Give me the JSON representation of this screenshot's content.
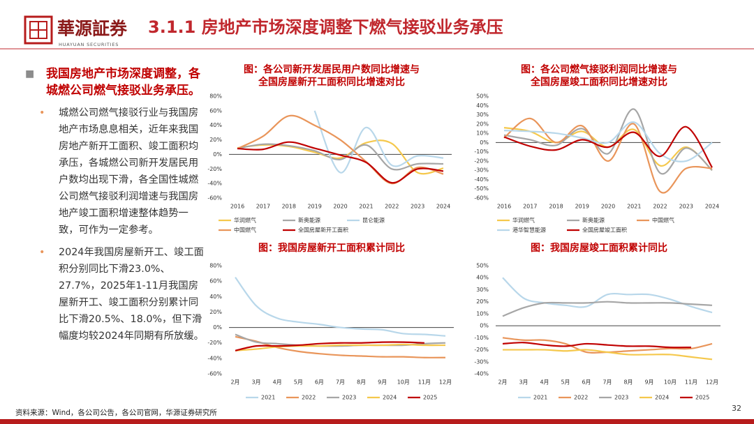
{
  "header": {
    "logo_text": "華源証券",
    "logo_subtext": "HUAYUAN SECURITIES",
    "title": "3.1.1 房地产市场深度调整下燃气接驳业务承压"
  },
  "summary": {
    "heading": "我国房地产市场深度调整，各城燃公司燃气接驳业务承压。",
    "points": [
      "城燃公司燃气接驳行业与我国房地产市场息息相关，近年来我国房地产新开工面积、竣工面积均承压，各城燃公司新开发居民用户数均出现下滑，各全国性城燃公司燃气接驳利润增速与我国房地产竣工面积增速整体趋势一致，可作为一定参考。",
      "2024年我国房屋新开工、竣工面积分别同比下滑23.0%、27.7%，2025年1-11月我国房屋新开工、竣工面积分别累计同比下滑20.5%、18.0%，但下滑幅度均较2024年同期有所放缓。"
    ]
  },
  "source": "资料来源：Wind，各公司公告，各公司官网，华源证券研究所",
  "page_number": "32",
  "chart_data": [
    {
      "type": "line",
      "title": [
        "图：各公司新开发居民用户数同比增速与",
        "全国房屋新开工面积同比增速对比"
      ],
      "categories": [
        "2016",
        "2017",
        "2018",
        "2019",
        "2020",
        "2021",
        "2022",
        "2023",
        "2024"
      ],
      "ylim": [
        -60,
        80
      ],
      "yticks": [
        {
          "value": -60,
          "label": "-60%"
        },
        {
          "value": -40,
          "label": "-40%"
        },
        {
          "value": -20,
          "label": "-20%"
        },
        {
          "value": 0,
          "label": "0%"
        },
        {
          "value": 20,
          "label": "20%"
        },
        {
          "value": 40,
          "label": "40%"
        },
        {
          "value": 60,
          "label": "60%"
        },
        {
          "value": 80,
          "label": "80%"
        }
      ],
      "series": [
        {
          "name": "华润燃气",
          "color": "#f5c84c",
          "values": [
            9,
            13,
            11,
            3,
            -5,
            16,
            15,
            -25,
            -19
          ]
        },
        {
          "name": "新奥能源",
          "color": "#a6a6a6",
          "values": [
            8,
            14,
            12,
            5,
            -7,
            13,
            -20,
            -13,
            -13
          ]
        },
        {
          "name": "昆仑能源",
          "color": "#b8d7ea",
          "values": [
            null,
            null,
            null,
            60,
            -25,
            37,
            -15,
            -2,
            -5
          ]
        },
        {
          "name": "中国燃气",
          "color": "#e9955a",
          "values": [
            8,
            25,
            53,
            40,
            20,
            -10,
            -40,
            -18,
            -27
          ]
        },
        {
          "name": "全国房屋新开工面积",
          "color": "#c00000",
          "values": [
            8,
            7,
            17,
            8.5,
            -1,
            -11,
            -39,
            -20,
            -23
          ]
        }
      ]
    },
    {
      "type": "line",
      "title": [
        "图：各公司燃气接驳利润同比增速与",
        "全国房屋竣工面积同比增速对比"
      ],
      "categories": [
        "2016",
        "2017",
        "2018",
        "2019",
        "2020",
        "2021",
        "2022",
        "2023",
        "2024"
      ],
      "ylim": [
        -60,
        50
      ],
      "yticks": [
        {
          "value": -60,
          "label": "-60%"
        },
        {
          "value": -50,
          "label": "-50%"
        },
        {
          "value": -40,
          "label": "-40%"
        },
        {
          "value": -30,
          "label": "-30%"
        },
        {
          "value": -20,
          "label": "-20%"
        },
        {
          "value": -10,
          "label": "-10%"
        },
        {
          "value": 0,
          "label": "0%"
        },
        {
          "value": 10,
          "label": "10%"
        },
        {
          "value": 20,
          "label": "20%"
        },
        {
          "value": 30,
          "label": "30%"
        },
        {
          "value": 40,
          "label": "40%"
        },
        {
          "value": 50,
          "label": "50%"
        }
      ],
      "series": [
        {
          "name": "华润燃气",
          "color": "#f5c84c",
          "values": [
            16,
            12,
            0,
            12,
            -5,
            14,
            -25,
            -5,
            -30
          ]
        },
        {
          "name": "新奥能源",
          "color": "#a6a6a6",
          "values": [
            8,
            3,
            -3,
            15,
            -12,
            36,
            -33,
            -6,
            -30
          ]
        },
        {
          "name": "中国燃气",
          "color": "#e9955a",
          "values": [
            5,
            26,
            0,
            18,
            -20,
            20,
            -53,
            -28,
            -28
          ]
        },
        {
          "name": "港华智慧能源",
          "color": "#b8d7ea",
          "values": [
            13,
            12,
            10,
            5,
            0,
            22,
            -12,
            -20,
            0
          ]
        },
        {
          "name": "全国房屋竣工面积",
          "color": "#c00000",
          "values": [
            6,
            -4,
            -8,
            3,
            -5,
            11,
            -15,
            17,
            -27
          ]
        }
      ]
    },
    {
      "type": "line",
      "title": "图：我国房屋新开工面积累计同比",
      "categories": [
        "2月",
        "3月",
        "4月",
        "5月",
        "6月",
        "7月",
        "8月",
        "9月",
        "10月",
        "11月",
        "12月"
      ],
      "ylim": [
        -60,
        80
      ],
      "yticks": [
        {
          "value": -60,
          "label": "-60%"
        },
        {
          "value": -40,
          "label": "-40%"
        },
        {
          "value": -20,
          "label": "-20%"
        },
        {
          "value": 0,
          "label": "0%"
        },
        {
          "value": 20,
          "label": "20%"
        },
        {
          "value": 40,
          "label": "40%"
        },
        {
          "value": 60,
          "label": "60%"
        },
        {
          "value": 80,
          "label": "80%"
        }
      ],
      "series": [
        {
          "name": "2021",
          "color": "#b8d7ea",
          "values": [
            65,
            28,
            12,
            7,
            4,
            0,
            -2,
            -3,
            -8,
            -9,
            -11
          ]
        },
        {
          "name": "2022",
          "color": "#e9955a",
          "values": [
            -12,
            -18,
            -26,
            -31,
            -34,
            -36,
            -37,
            -38,
            -38,
            -39,
            -39
          ]
        },
        {
          "name": "2023",
          "color": "#a6a6a6",
          "values": [
            -9,
            -19,
            -21,
            -23,
            -24,
            -24,
            -23,
            -23,
            -23,
            -21,
            -20
          ]
        },
        {
          "name": "2024",
          "color": "#f5c84c",
          "values": [
            -30,
            -28,
            -25,
            -24,
            -24,
            -23,
            -23,
            -23,
            -22,
            -23,
            -23
          ]
        },
        {
          "name": "2025",
          "color": "#c00000",
          "values": [
            -30,
            -24,
            -24,
            -23,
            -21,
            -20,
            -20,
            -19,
            -19,
            -20,
            null
          ]
        }
      ]
    },
    {
      "type": "line",
      "title": "图：我国房屋竣工面积累计同比",
      "categories": [
        "2月",
        "3月",
        "4月",
        "5月",
        "6月",
        "7月",
        "8月",
        "9月",
        "10月",
        "11月",
        "12月"
      ],
      "ylim": [
        -40,
        50
      ],
      "yticks": [
        {
          "value": -40,
          "label": "-40%"
        },
        {
          "value": -30,
          "label": "-30%"
        },
        {
          "value": -20,
          "label": "-20%"
        },
        {
          "value": -10,
          "label": "-10%"
        },
        {
          "value": 0,
          "label": "0%"
        },
        {
          "value": 10,
          "label": "10%"
        },
        {
          "value": 20,
          "label": "20%"
        },
        {
          "value": 30,
          "label": "30%"
        },
        {
          "value": 40,
          "label": "40%"
        },
        {
          "value": 50,
          "label": "50%"
        }
      ],
      "series": [
        {
          "name": "2021",
          "color": "#b8d7ea",
          "values": [
            40,
            23,
            19,
            17,
            16,
            26,
            26,
            26,
            22,
            16,
            11
          ]
        },
        {
          "name": "2022",
          "color": "#e9955a",
          "values": [
            -10,
            -12,
            -12,
            -15,
            -22,
            -22,
            -21,
            -20,
            -19,
            -19,
            -15
          ]
        },
        {
          "name": "2023",
          "color": "#a6a6a6",
          "values": [
            8,
            15,
            19,
            19,
            19,
            20,
            19,
            19,
            19,
            18,
            17
          ]
        },
        {
          "name": "2024",
          "color": "#f5c84c",
          "values": [
            -20,
            -20,
            -20,
            -21,
            -20,
            -22,
            -24,
            -24,
            -24,
            -26,
            -28
          ]
        },
        {
          "name": "2025",
          "color": "#c00000",
          "values": [
            -15,
            -14,
            -16,
            -17,
            -15,
            -16,
            -17,
            -17,
            -18,
            -18,
            null
          ]
        }
      ]
    }
  ]
}
